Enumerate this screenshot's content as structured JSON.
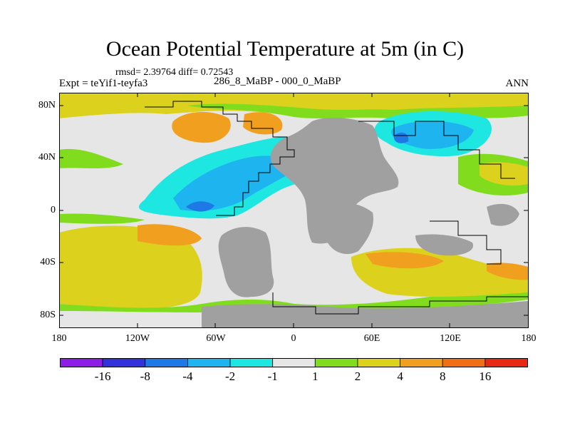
{
  "title": "Ocean Potential Temperature at 5m (in C)",
  "stats": "rmsd= 2.39764 diff= 0.72543",
  "experiment": "Expt = teYif1-teyfa3",
  "periods": "286_8_MaBP - 000_0_MaBP",
  "season": "ANN",
  "map": {
    "lat_labels": [
      "80N",
      "40N",
      "0",
      "40S",
      "80S"
    ],
    "lon_labels": [
      "180",
      "120W",
      "60W",
      "0",
      "60E",
      "120E",
      "180"
    ],
    "land_color": "#a0a0a0",
    "outline_color": "#000000"
  },
  "colorbar": {
    "colors": [
      "#8c1ee6",
      "#3232dc",
      "#1e78e6",
      "#1eb4f0",
      "#1ee6e1",
      "#e6e6e6",
      "#82dc1e",
      "#dcd21e",
      "#f0a01e",
      "#f06e14",
      "#e62814"
    ],
    "labels": [
      "-16",
      "-8",
      "-4",
      "-2",
      "-1",
      "1",
      "2",
      "4",
      "8",
      "16"
    ]
  }
}
